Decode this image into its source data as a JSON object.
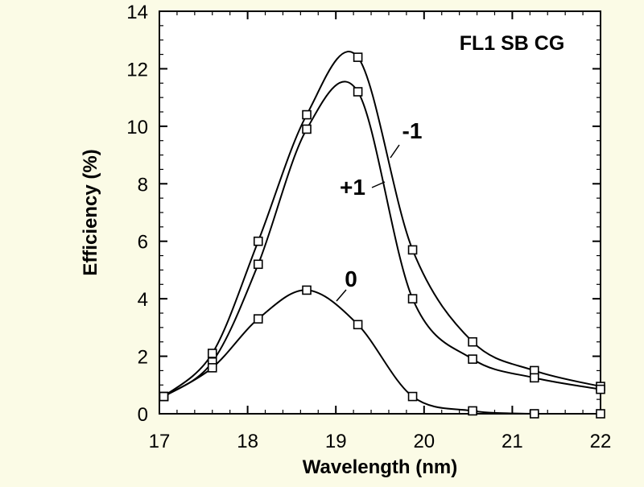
{
  "chart_data": {
    "type": "line",
    "title": "FL1 SB CG",
    "xlabel": "Wavelength (nm)",
    "ylabel": "Efficiency (%)",
    "xlim": [
      17,
      22
    ],
    "ylim": [
      0,
      14
    ],
    "xticks": [
      "17",
      "18",
      "19",
      "20",
      "21",
      "22"
    ],
    "yticks": [
      "0",
      "2",
      "4",
      "6",
      "8",
      "10",
      "12",
      "14"
    ],
    "grid": false,
    "legend": "inline labels",
    "series": [
      {
        "name": "-1",
        "x": [
          17.05,
          17.6,
          18.12,
          18.67,
          19.25,
          19.87,
          20.55,
          21.25,
          22.0
        ],
        "y": [
          0.6,
          2.1,
          6.0,
          10.4,
          12.4,
          5.7,
          2.5,
          1.5,
          0.95
        ]
      },
      {
        "name": "+1",
        "x": [
          17.05,
          17.6,
          18.12,
          18.67,
          19.25,
          19.87,
          20.55,
          21.25,
          22.0
        ],
        "y": [
          0.6,
          1.8,
          5.2,
          9.9,
          11.2,
          4.0,
          1.9,
          1.25,
          0.85
        ]
      },
      {
        "name": "0",
        "x": [
          17.05,
          17.6,
          18.12,
          18.67,
          19.25,
          19.87,
          20.55,
          21.25,
          22.0
        ],
        "y": [
          0.6,
          1.6,
          3.3,
          4.3,
          3.1,
          0.6,
          0.1,
          0.0,
          0.0
        ]
      }
    ]
  }
}
